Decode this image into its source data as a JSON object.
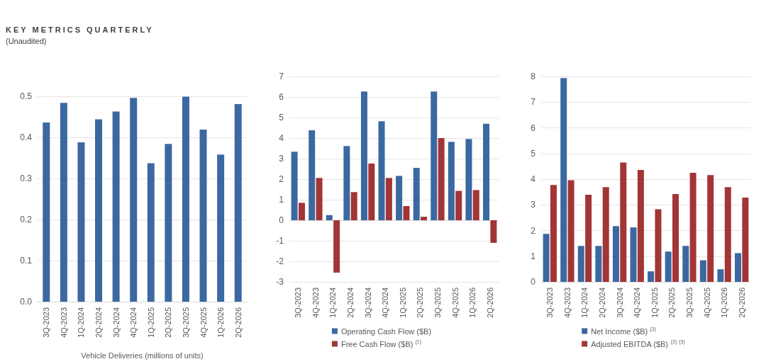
{
  "chart_data": [
    {
      "type": "bar",
      "title": "KEY METRICS QUARTERLY",
      "subtitle": "(Unaudited)",
      "xlabel": "Vehicle Deliveries (millions of units)",
      "categories": [
        "3Q-2023",
        "4Q-2023",
        "1Q-2024",
        "2Q-2024",
        "3Q-2024",
        "4Q-2024",
        "1Q-2025",
        "2Q-2025",
        "3Q-2025",
        "4Q-2025",
        "1Q-2026",
        "2Q-2026"
      ],
      "values": [
        0.436,
        0.484,
        0.388,
        0.444,
        0.463,
        0.496,
        0.337,
        0.384,
        0.499,
        0.419,
        0.358,
        0.481
      ],
      "color": "#3b68a1",
      "ylim": [
        0,
        0.5
      ],
      "yticks": [
        {
          "value": 0,
          "label": "0.0"
        },
        0.1,
        0.2,
        0.3,
        0.4,
        0.5
      ],
      "grid": "y"
    },
    {
      "type": "bar",
      "categories": [
        "3Q-2023",
        "4Q-2023",
        "1Q-2024",
        "2Q-2024",
        "3Q-2024",
        "4Q-2024",
        "1Q-2025",
        "2Q-2025",
        "3Q-2025",
        "4Q-2025",
        "1Q-2026",
        "2Q-2026"
      ],
      "series": [
        {
          "name": "Operating Cash Flow ($B)",
          "color": "#3b68a1",
          "values": [
            3.34,
            4.38,
            0.25,
            3.61,
            6.27,
            4.82,
            2.16,
            2.55,
            6.27,
            3.82,
            3.96,
            4.7
          ]
        },
        {
          "name": "Free Cash Flow ($B) $^{(1)}$",
          "color": "#a23535",
          "values": [
            0.85,
            2.06,
            -2.55,
            1.37,
            2.76,
            2.06,
            0.69,
            0.17,
            4.0,
            1.43,
            1.47,
            -1.1
          ]
        }
      ],
      "ylim": [
        -3,
        7
      ],
      "yticks": [
        -3,
        -2,
        -1,
        0,
        1,
        2,
        3,
        4,
        5,
        6,
        7
      ],
      "grid": "y",
      "legend": "bottom"
    },
    {
      "type": "bar",
      "categories": [
        "3Q-2023",
        "4Q-2023",
        "1Q-2024",
        "2Q-2024",
        "3Q-2024",
        "4Q-2024",
        "1Q-2025",
        "2Q-2025",
        "3Q-2025",
        "4Q-2025",
        "1Q-2026",
        "2Q-2026"
      ],
      "series": [
        {
          "name": "Net Income ($B) $^{(2)}$",
          "color": "#3b68a1",
          "values": [
            1.87,
            7.94,
            1.4,
            1.4,
            2.17,
            2.12,
            0.41,
            1.18,
            1.4,
            0.84,
            0.49,
            1.12
          ]
        },
        {
          "name": "Adjusted EBITDA ($B) $^{(2)}$ $^{(3)}$",
          "color": "#a23535",
          "values": [
            3.77,
            3.96,
            3.39,
            3.69,
            4.65,
            4.36,
            2.83,
            3.42,
            4.25,
            4.16,
            3.69,
            3.28
          ]
        }
      ],
      "ylim": [
        0,
        8
      ],
      "yticks": [
        0,
        1,
        2,
        3,
        4,
        5,
        6,
        7,
        8
      ],
      "grid": "y",
      "legend": "bottom"
    }
  ]
}
